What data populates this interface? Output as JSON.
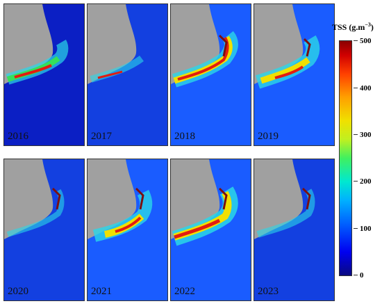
{
  "panels": [
    {
      "year": "2016"
    },
    {
      "year": "2017"
    },
    {
      "year": "2018"
    },
    {
      "year": "2019"
    },
    {
      "year": "2020"
    },
    {
      "year": "2021"
    },
    {
      "year": "2022"
    },
    {
      "year": "2023"
    }
  ],
  "colorbar": {
    "title_main": "TSS (g.m",
    "title_exp": "−3",
    "title_end": ")",
    "ticks": [
      "500",
      "400",
      "300",
      "200",
      "100",
      "0"
    ]
  },
  "colors": {
    "land": "#a0a0a0",
    "sea_deep": "#0b1fc4",
    "sea_mid": "#1a5cff",
    "plume_cyan": "#2ad7e8",
    "plume_green": "#35e05a",
    "plume_yellow": "#f0e000",
    "plume_red": "#e21c10",
    "plume_dark": "#7a1010"
  }
}
